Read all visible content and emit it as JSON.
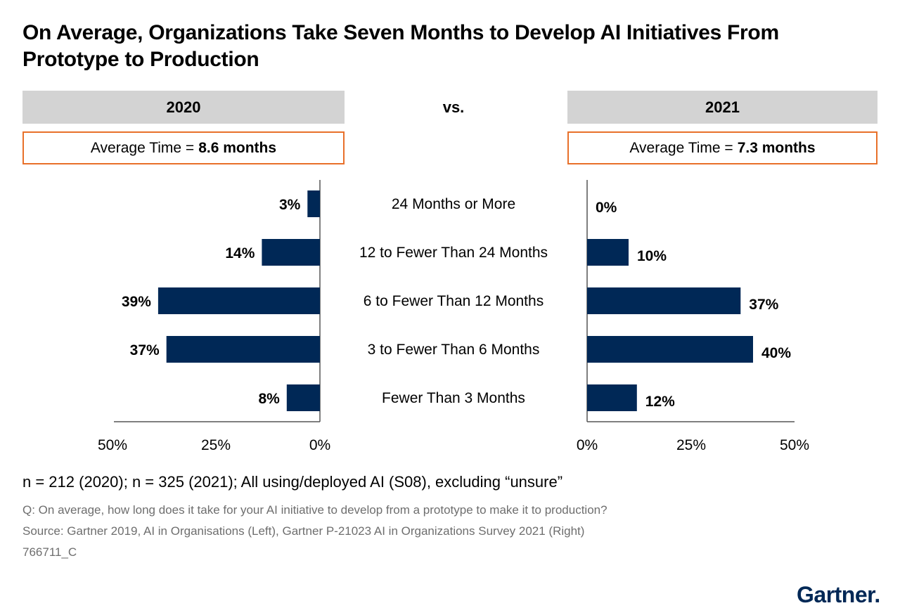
{
  "title": "On Average, Organizations Take Seven Months to Develop AI Initiatives From Prototype to Production",
  "vs_label": "vs.",
  "panels": {
    "left": {
      "year": "2020",
      "avg_prefix": "Average Time =",
      "avg_value": "8.6 months"
    },
    "right": {
      "year": "2021",
      "avg_prefix": "Average Time =",
      "avg_value": "7.3 months"
    }
  },
  "chart_data": {
    "type": "bar",
    "orientation": "horizontal-butterfly",
    "categories": [
      "24 Months or More",
      "12 to Fewer Than 24 Months",
      "6 to Fewer Than 12 Months",
      "3 to Fewer Than 6 Months",
      "Fewer Than 3 Months"
    ],
    "series": [
      {
        "name": "2020",
        "values": [
          3,
          14,
          39,
          37,
          8
        ],
        "labels": [
          "3%",
          "14%",
          "39%",
          "37%",
          "8%"
        ]
      },
      {
        "name": "2021",
        "values": [
          0,
          10,
          37,
          40,
          12
        ],
        "labels": [
          "0%",
          "10%",
          "37%",
          "40%",
          "12%"
        ]
      }
    ],
    "xlim": [
      0,
      50
    ],
    "ticks": {
      "left": [
        "50%",
        "25%",
        "0%"
      ],
      "right": [
        "0%",
        "25%",
        "50%"
      ]
    },
    "bar_color": "#002856",
    "grid": false
  },
  "footnotes": {
    "sample": "n = 212 (2020); n = 325 (2021); All using/deployed AI (S08), excluding “unsure”",
    "question": "Q: On average, how long does it take for your AI initiative to develop from a prototype to make it to production?",
    "source": "Source: Gartner 2019, AI in Organisations (Left), Gartner P-21023 AI in Organizations Survey 2021 (Right)",
    "id": "766711_C"
  },
  "logo": {
    "text": "Gartner."
  },
  "colors": {
    "accent_border": "#e8702a",
    "header_bg": "#d3d3d3",
    "bar": "#002856"
  }
}
